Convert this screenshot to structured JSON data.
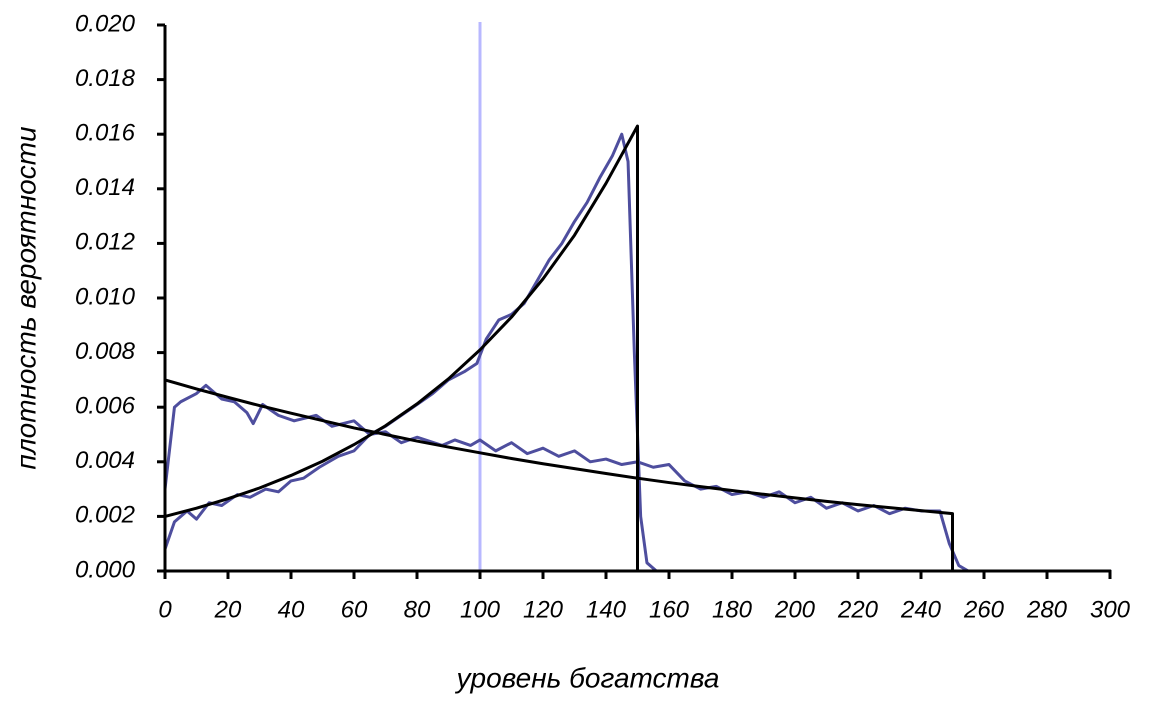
{
  "chart_data": {
    "type": "line",
    "xlabel": "уровень богатства",
    "ylabel": "плотность вероятности",
    "xlim": [
      0,
      300
    ],
    "ylim": [
      0,
      0.02
    ],
    "xticks": [
      0,
      20,
      40,
      60,
      80,
      100,
      120,
      140,
      160,
      180,
      200,
      220,
      240,
      260,
      280,
      300
    ],
    "yticks": [
      {
        "value": 0,
        "label": "0.000"
      },
      {
        "value": 0.002,
        "label": "0.002"
      },
      {
        "value": 0.004,
        "label": "0.004"
      },
      {
        "value": 0.006,
        "label": "0.006"
      },
      {
        "value": 0.008,
        "label": "0.008"
      },
      {
        "value": 0.01,
        "label": "0.010"
      },
      {
        "value": 0.012,
        "label": "0.012"
      },
      {
        "value": 0.014,
        "label": "0.014"
      },
      {
        "value": 0.016,
        "label": "0.016"
      },
      {
        "value": 0.018,
        "label": "0.018"
      },
      {
        "value": 0.02,
        "label": "0.020"
      }
    ],
    "vline": {
      "x": 100,
      "color": "#b8b8ff"
    },
    "series": [
      {
        "color": "#4e4e9e",
        "x": [
          0,
          3,
          5,
          10,
          13,
          18,
          22,
          26,
          28,
          31,
          36,
          41,
          48,
          53,
          60,
          65,
          70,
          75,
          80,
          88,
          92,
          97,
          100,
          105,
          110,
          115,
          120,
          125,
          130,
          135,
          140,
          145,
          150,
          155,
          160,
          165,
          170,
          175,
          180,
          185,
          190,
          195,
          200,
          205,
          210,
          215,
          220,
          225,
          230,
          235,
          240,
          246,
          249,
          252,
          255,
          300
        ],
        "values": [
          0.003,
          0.006,
          0.0062,
          0.0065,
          0.0068,
          0.0063,
          0.0062,
          0.0058,
          0.0054,
          0.0061,
          0.0057,
          0.0055,
          0.0057,
          0.0053,
          0.0055,
          0.005,
          0.0051,
          0.0047,
          0.0049,
          0.0046,
          0.0048,
          0.0046,
          0.0048,
          0.0044,
          0.0047,
          0.0043,
          0.0045,
          0.0042,
          0.0044,
          0.004,
          0.0041,
          0.0039,
          0.004,
          0.0038,
          0.0039,
          0.0033,
          0.003,
          0.0031,
          0.0028,
          0.0029,
          0.0027,
          0.0029,
          0.0025,
          0.0027,
          0.0023,
          0.0025,
          0.0022,
          0.0024,
          0.0021,
          0.0023,
          0.0022,
          0.0022,
          0.001,
          0.0002,
          0,
          0
        ]
      },
      {
        "color": "#4e4e9e",
        "x": [
          0,
          3,
          7,
          10,
          14,
          18,
          23,
          27,
          32,
          36,
          40,
          44,
          49,
          55,
          60,
          65,
          70,
          75,
          80,
          85,
          90,
          95,
          99,
          102,
          106,
          110,
          114,
          118,
          122,
          126,
          130,
          134,
          138,
          142,
          145,
          147,
          149,
          151,
          153,
          156,
          300
        ],
        "values": [
          0.0008,
          0.0018,
          0.0022,
          0.0019,
          0.0025,
          0.0024,
          0.0028,
          0.0027,
          0.003,
          0.0029,
          0.0033,
          0.0034,
          0.0038,
          0.0042,
          0.0044,
          0.005,
          0.0053,
          0.0057,
          0.0061,
          0.0065,
          0.007,
          0.0073,
          0.0076,
          0.0085,
          0.0092,
          0.0094,
          0.0098,
          0.0106,
          0.0114,
          0.012,
          0.0128,
          0.0135,
          0.0144,
          0.0152,
          0.016,
          0.015,
          0.008,
          0.002,
          0.0003,
          0,
          0
        ]
      },
      {
        "color": "#000000",
        "x": [
          0,
          10,
          20,
          30,
          40,
          50,
          60,
          70,
          80,
          90,
          100,
          110,
          120,
          130,
          140,
          150,
          160,
          170,
          180,
          190,
          200,
          210,
          220,
          230,
          240,
          250,
          250,
          300
        ],
        "values": [
          0.007,
          0.00667,
          0.00636,
          0.00606,
          0.00578,
          0.00551,
          0.00524,
          0.005,
          0.00476,
          0.00454,
          0.00433,
          0.00412,
          0.00393,
          0.00375,
          0.00357,
          0.0034,
          0.00324,
          0.00309,
          0.00295,
          0.00281,
          0.00268,
          0.00255,
          0.00243,
          0.00232,
          0.00221,
          0.0021,
          0,
          0
        ]
      },
      {
        "color": "#000000",
        "x": [
          0,
          10,
          20,
          30,
          40,
          50,
          60,
          70,
          80,
          90,
          100,
          110,
          120,
          130,
          140,
          150,
          150,
          300
        ],
        "values": [
          0.002,
          0.0023,
          0.00265,
          0.00304,
          0.0035,
          0.00402,
          0.00463,
          0.00532,
          0.00612,
          0.00704,
          0.0081,
          0.0093,
          0.0107,
          0.0123,
          0.0142,
          0.0163,
          0,
          0
        ]
      }
    ]
  }
}
